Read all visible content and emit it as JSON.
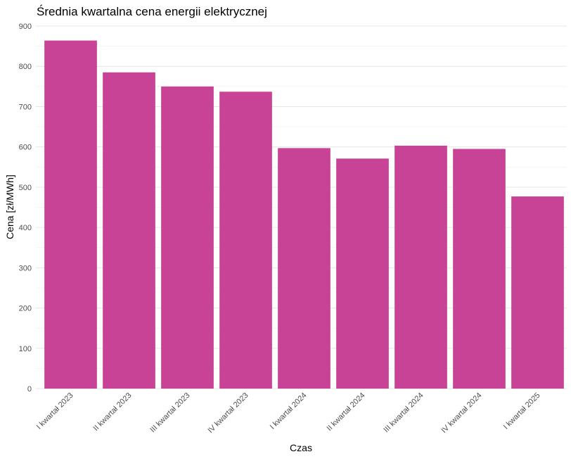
{
  "chart_data": {
    "type": "bar",
    "title": "Średnia kwartalna cena energii elektrycznej",
    "xlabel": "Czas",
    "ylabel": "Cena [zł/MWh]",
    "categories": [
      "I kwartał 2023",
      "II kwartał 2023",
      "III kwartał 2023",
      "IV kwartał 2023",
      "I kwartał 2024",
      "II kwartał 2024",
      "III kwartał 2024",
      "IV kwartał 2024",
      "I kwartał 2025"
    ],
    "values": [
      864,
      785,
      750,
      737,
      597,
      571,
      603,
      595,
      477
    ],
    "ylim": [
      0,
      900
    ],
    "yticks": [
      0,
      100,
      200,
      300,
      400,
      500,
      600,
      700,
      800,
      900
    ],
    "bar_color": "#c84396",
    "grid": true,
    "legend": "none"
  }
}
